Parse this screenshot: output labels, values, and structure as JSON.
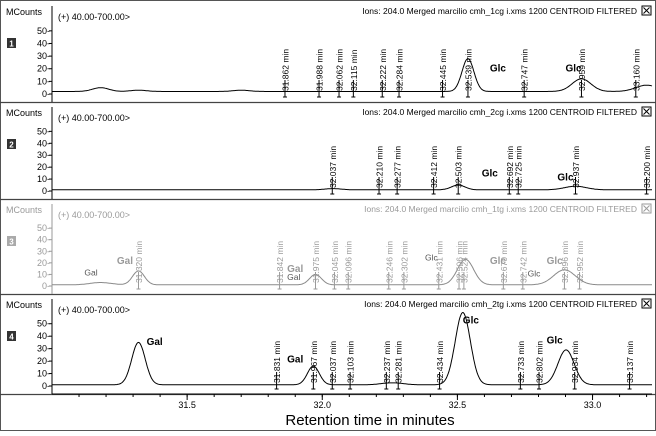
{
  "chart_data": {
    "type": "line",
    "xlabel": "Retention time in minutes",
    "x_ticks": [
      31.5,
      32.0,
      32.5,
      33.0
    ],
    "x_tick_labels": [
      "31.5",
      "32.0",
      "32.5",
      "33.0"
    ],
    "xlim": [
      31.0,
      33.22
    ],
    "panels": [
      {
        "number": "1",
        "ylabel": "MCounts",
        "ylim": [
          0,
          57
        ],
        "y_ticks": [
          0,
          10,
          20,
          30,
          40,
          50
        ],
        "y_tick_labels": [
          "0-",
          "10-",
          "20-",
          "30-",
          "40-",
          "50-"
        ],
        "mass_range": "(+) 40.00-700.00>",
        "ions_text": "Ions: 204.0 Merged marcilio cmh_1cg i.xms 1200 CENTROID FILTERED",
        "dimmed": false,
        "series": {
          "baseline": 2,
          "bumps": [
            [
              31.18,
              3,
              0.03
            ],
            [
              31.32,
              1,
              0.03
            ],
            [
              31.7,
              1,
              0.03
            ]
          ],
          "peaks": [
            [
              32.539,
              26,
              0.022
            ],
            [
              32.959,
              10,
              0.035
            ],
            [
              33.2,
              5,
              0.04
            ]
          ]
        },
        "markers": [
          {
            "x": 31.862,
            "label": "31.862 min"
          },
          {
            "x": 31.988,
            "label": "31.988 min"
          },
          {
            "x": 32.062,
            "label": "32.062 min"
          },
          {
            "x": 32.115,
            "label": "32.115 min"
          },
          {
            "x": 32.222,
            "label": "32.222 min"
          },
          {
            "x": 32.284,
            "label": "32.284 min"
          },
          {
            "x": 32.445,
            "label": "32.445 min"
          },
          {
            "x": 32.539,
            "label": "32.539 min"
          },
          {
            "x": 32.747,
            "label": "32.747 min"
          },
          {
            "x": 32.959,
            "label": "32.959 min"
          },
          {
            "x": 33.16,
            "label": "33.160 min"
          }
        ],
        "annotations": [
          {
            "x": 32.62,
            "y": 18,
            "text": "Glc",
            "bold": true
          },
          {
            "x": 32.9,
            "y": 18,
            "text": "Glc",
            "bold": true
          }
        ]
      },
      {
        "number": "2",
        "ylabel": "MCounts",
        "ylim": [
          0,
          57
        ],
        "y_ticks": [
          0,
          10,
          20,
          30,
          40,
          50
        ],
        "y_tick_labels": [
          "0-",
          "10-",
          "20-",
          "30-",
          "40-",
          "50-"
        ],
        "mass_range": "(+) 40.00-700.00>",
        "ions_text": "Ions: 204.0 Merged marcilio cmh_2cg i.xms 1200 CENTROID FILTERED",
        "dimmed": false,
        "series": {
          "baseline": 1,
          "bumps": [
            [
              32.04,
              1,
              0.03
            ]
          ],
          "peaks": [
            [
              32.503,
              4,
              0.025
            ],
            [
              32.937,
              3,
              0.04
            ]
          ]
        },
        "markers": [
          {
            "x": 32.037,
            "label": "32.037 min"
          },
          {
            "x": 32.21,
            "label": "32.210 min"
          },
          {
            "x": 32.277,
            "label": "32.277 min"
          },
          {
            "x": 32.412,
            "label": "32.412 min"
          },
          {
            "x": 32.503,
            "label": "32.503 min"
          },
          {
            "x": 32.692,
            "label": "32.692 min"
          },
          {
            "x": 32.725,
            "label": "32.725 min"
          },
          {
            "x": 32.937,
            "label": "32.937 min"
          },
          {
            "x": 33.2,
            "label": "33.200 min"
          }
        ],
        "annotations": [
          {
            "x": 32.59,
            "y": 12,
            "text": "Glc",
            "bold": true
          },
          {
            "x": 32.87,
            "y": 9,
            "text": "Glc",
            "bold": true
          }
        ]
      },
      {
        "number": "3",
        "ylabel": "MCounts",
        "ylim": [
          0,
          57
        ],
        "y_ticks": [
          0,
          10,
          20,
          30,
          40,
          50
        ],
        "y_tick_labels": [
          "0-",
          "10-",
          "20-",
          "30-",
          "40-",
          "50-"
        ],
        "mass_range": "(+) 40.00-700.00>",
        "ions_text": "Ions: 204.0 Merged marcilio cmh_1tg i.xms 1200 CENTROID FILTERED",
        "dimmed": true,
        "series": {
          "baseline": 1,
          "bumps": [
            [
              31.18,
              2,
              0.04
            ]
          ],
          "peaks": [
            [
              31.32,
              12,
              0.022
            ],
            [
              31.975,
              9,
              0.022
            ],
            [
              32.53,
              22,
              0.03
            ],
            [
              32.896,
              13,
              0.04
            ]
          ]
        },
        "markers": [
          {
            "x": 31.32,
            "label": "31.320 min"
          },
          {
            "x": 31.842,
            "label": "31.842 min"
          },
          {
            "x": 31.975,
            "label": "31.975 min"
          },
          {
            "x": 32.045,
            "label": "32.045 min"
          },
          {
            "x": 32.096,
            "label": "32.096 min"
          },
          {
            "x": 32.246,
            "label": "32.246 min"
          },
          {
            "x": 32.302,
            "label": "32.302 min"
          },
          {
            "x": 32.431,
            "label": "32.431 min"
          },
          {
            "x": 32.506,
            "label": "32.506 min"
          },
          {
            "x": 32.524,
            "label": "32.524 min"
          },
          {
            "x": 32.67,
            "label": "32.670 min"
          },
          {
            "x": 32.742,
            "label": "32.742 min"
          },
          {
            "x": 32.896,
            "label": "32.896 min"
          },
          {
            "x": 32.952,
            "label": "32.952 min"
          }
        ],
        "annotations": [
          {
            "x": 31.12,
            "y": 9,
            "text": "Gal",
            "bold": false
          },
          {
            "x": 31.24,
            "y": 19,
            "text": "Gal",
            "bold": true
          },
          {
            "x": 31.87,
            "y": 5,
            "text": "Gal",
            "bold": false
          },
          {
            "x": 31.87,
            "y": 12,
            "text": "Gal",
            "bold": true
          },
          {
            "x": 32.38,
            "y": 22,
            "text": "Glc",
            "bold": false
          },
          {
            "x": 32.62,
            "y": 19,
            "text": "Glc",
            "bold": true
          },
          {
            "x": 32.76,
            "y": 8,
            "text": "Glc",
            "bold": false
          },
          {
            "x": 32.83,
            "y": 19,
            "text": "Glc",
            "bold": true
          }
        ]
      },
      {
        "number": "4",
        "ylabel": "MCounts",
        "ylim": [
          0,
          57
        ],
        "y_ticks": [
          0,
          10,
          20,
          30,
          40,
          50
        ],
        "y_tick_labels": [
          "0-",
          "10-",
          "20-",
          "30-",
          "40-",
          "50-"
        ],
        "mass_range": "(+) 40.00-700.00>",
        "ions_text": "Ions: 204.0 Merged marcilio cmh_2tg i.xms 1200 CENTROID FILTERED",
        "dimmed": false,
        "series": {
          "baseline": 1,
          "bumps": [
            [
              32.237,
              1,
              0.03
            ],
            [
              32.281,
              1,
              0.03
            ]
          ],
          "peaks": [
            [
              31.32,
              34,
              0.025
            ],
            [
              31.967,
              15,
              0.022
            ],
            [
              32.52,
              58,
              0.028
            ],
            [
              32.902,
              28,
              0.03
            ]
          ]
        },
        "markers": [
          {
            "x": 31.831,
            "label": "31.831 min"
          },
          {
            "x": 31.967,
            "label": "31.967 min"
          },
          {
            "x": 32.037,
            "label": "32.037 min"
          },
          {
            "x": 32.103,
            "label": "32.103 min"
          },
          {
            "x": 32.237,
            "label": "32.237 min"
          },
          {
            "x": 32.281,
            "label": "32.281 min"
          },
          {
            "x": 32.434,
            "label": "32.434 min"
          },
          {
            "x": 32.733,
            "label": "32.733 min"
          },
          {
            "x": 32.802,
            "label": "32.802 min"
          },
          {
            "x": 32.934,
            "label": "32.934 min"
          },
          {
            "x": 33.137,
            "label": "33.137 min"
          }
        ],
        "annotations": [
          {
            "x": 31.35,
            "y": 33,
            "text": "Gal",
            "bold": true
          },
          {
            "x": 31.87,
            "y": 19,
            "text": "Gal",
            "bold": true
          },
          {
            "x": 32.52,
            "y": 50,
            "text": "Glc",
            "bold": true
          },
          {
            "x": 32.83,
            "y": 34,
            "text": "Glc",
            "bold": true
          }
        ]
      }
    ]
  }
}
